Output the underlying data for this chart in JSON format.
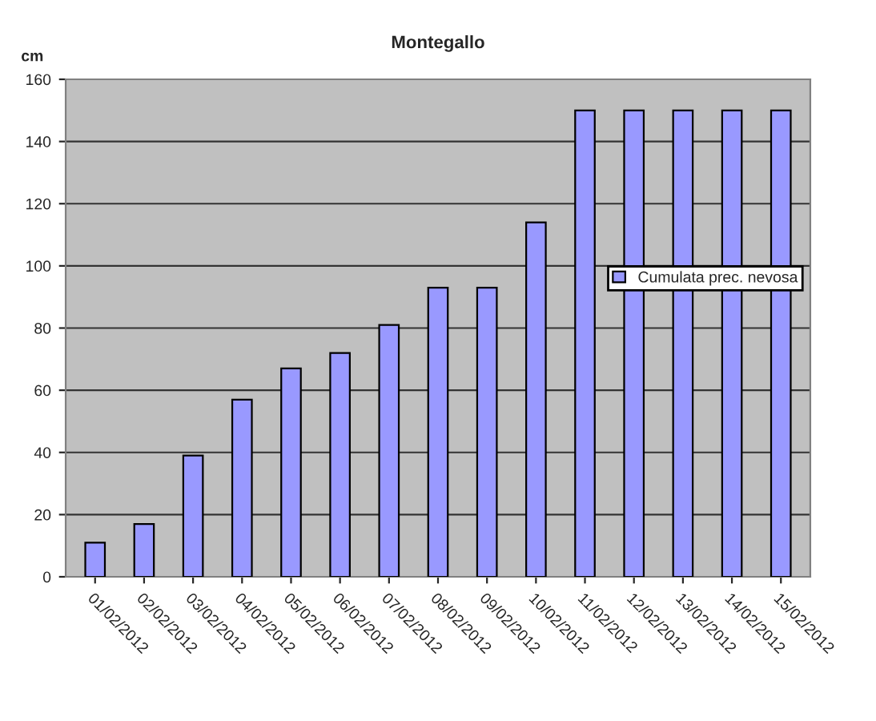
{
  "chart_data": {
    "type": "bar",
    "title": "Montegallo",
    "ylabel": "cm",
    "categories": [
      "01/02/2012",
      "02/02/2012",
      "03/02/2012",
      "04/02/2012",
      "05/02/2012",
      "06/02/2012",
      "07/02/2012",
      "08/02/2012",
      "09/02/2012",
      "10/02/2012",
      "11/02/2012",
      "12/02/2012",
      "13/02/2012",
      "14/02/2012",
      "15/02/2012"
    ],
    "series": [
      {
        "name": "Cumulata prec. nevosa",
        "color": "#9999ff",
        "values": [
          11,
          17,
          39,
          57,
          67,
          72,
          81,
          93,
          93,
          114,
          150,
          150,
          150,
          150,
          150
        ]
      }
    ],
    "ylim": [
      0,
      160
    ],
    "yticks": [
      0,
      20,
      40,
      60,
      80,
      100,
      120,
      140,
      160
    ],
    "grid": "y",
    "legend": "right"
  }
}
